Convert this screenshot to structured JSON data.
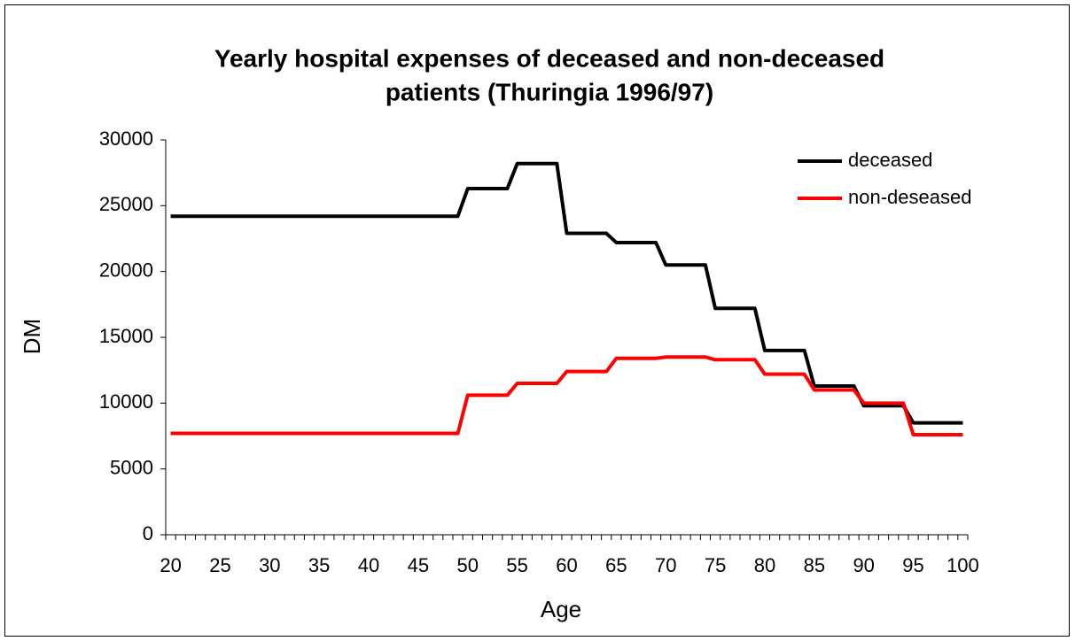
{
  "chart_data": {
    "type": "line",
    "title": [
      "Yearly hospital expenses of deceased and non-deceased",
      "patients (Thuringia 1996/97)"
    ],
    "x_label": "Age",
    "y_label": "DM",
    "categories": [
      20,
      null,
      null,
      null,
      null,
      25,
      null,
      null,
      null,
      null,
      30,
      null,
      null,
      null,
      null,
      35,
      null,
      null,
      null,
      null,
      40,
      null,
      null,
      null,
      null,
      45,
      null,
      null,
      null,
      null,
      50,
      null,
      null,
      null,
      null,
      55,
      null,
      null,
      null,
      null,
      60,
      null,
      null,
      null,
      null,
      65,
      null,
      null,
      null,
      null,
      70,
      null,
      null,
      null,
      null,
      75,
      null,
      null,
      null,
      null,
      80,
      null,
      null,
      null,
      null,
      85,
      null,
      null,
      null,
      null,
      90,
      null,
      null,
      null,
      null,
      95,
      null,
      null,
      null,
      null,
      100
    ],
    "series": [
      {
        "name": "deceased",
        "color": "#000000",
        "values": [
          24200,
          24200,
          24200,
          24200,
          24200,
          24200,
          24200,
          24200,
          24200,
          24200,
          24200,
          24200,
          24200,
          24200,
          24200,
          24200,
          24200,
          24200,
          24200,
          24200,
          24200,
          24200,
          24200,
          24200,
          24200,
          24200,
          24200,
          24200,
          24200,
          24200,
          26300,
          26300,
          26300,
          26300,
          26300,
          28200,
          28200,
          28200,
          28200,
          28200,
          22900,
          22900,
          22900,
          22900,
          22900,
          22200,
          22200,
          22200,
          22200,
          22200,
          20500,
          20500,
          20500,
          20500,
          20500,
          17200,
          17200,
          17200,
          17200,
          17200,
          14000,
          14000,
          14000,
          14000,
          14000,
          11300,
          11300,
          11300,
          11300,
          11300,
          9800,
          9800,
          9800,
          9800,
          9800,
          8500,
          8500,
          8500,
          8500,
          8500,
          8500
        ]
      },
      {
        "name": "non-deseased",
        "color": "#ff0000",
        "values": [
          7700,
          7700,
          7700,
          7700,
          7700,
          7700,
          7700,
          7700,
          7700,
          7700,
          7700,
          7700,
          7700,
          7700,
          7700,
          7700,
          7700,
          7700,
          7700,
          7700,
          7700,
          7700,
          7700,
          7700,
          7700,
          7700,
          7700,
          7700,
          7700,
          7700,
          10600,
          10600,
          10600,
          10600,
          10600,
          11500,
          11500,
          11500,
          11500,
          11500,
          12400,
          12400,
          12400,
          12400,
          12400,
          13400,
          13400,
          13400,
          13400,
          13400,
          13500,
          13500,
          13500,
          13500,
          13500,
          13300,
          13300,
          13300,
          13300,
          13300,
          12200,
          12200,
          12200,
          12200,
          12200,
          11000,
          11000,
          11000,
          11000,
          11000,
          10000,
          10000,
          10000,
          10000,
          10000,
          7600,
          7600,
          7600,
          7600,
          7600,
          7600
        ]
      }
    ],
    "ylim": [
      0,
      30000
    ],
    "yticks": [
      0,
      5000,
      10000,
      15000,
      20000,
      25000,
      30000
    ],
    "grid": false,
    "legend": "upper right"
  }
}
